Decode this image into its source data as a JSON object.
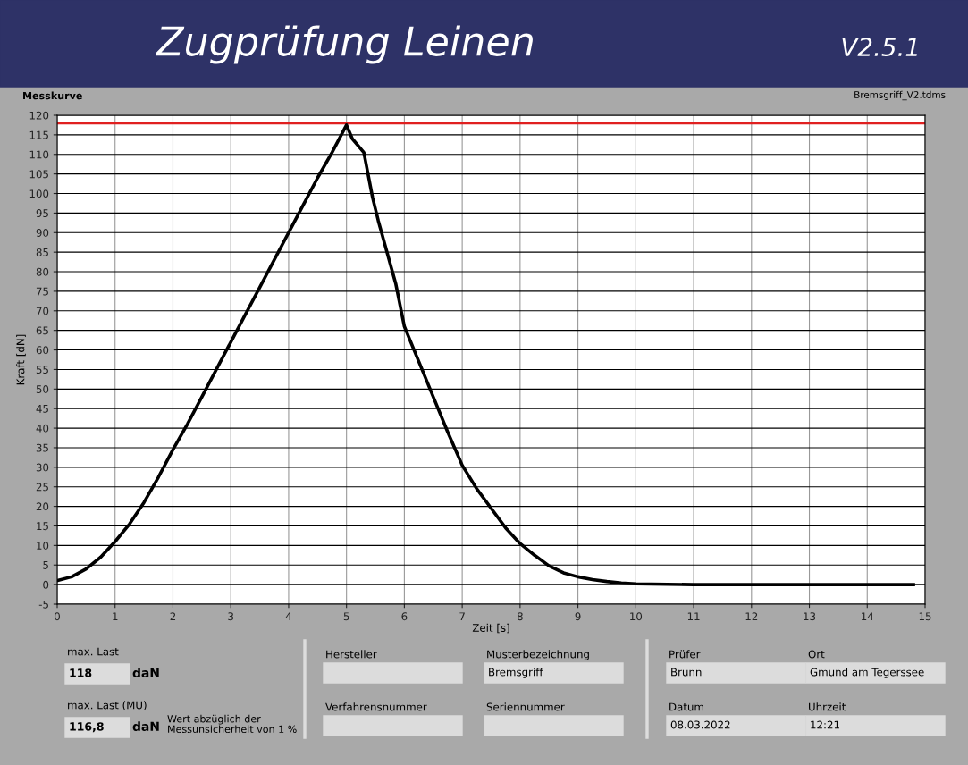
{
  "chart_data": {
    "type": "line",
    "title": "Zugprüfung Leinen",
    "subtitle": "Messkurve",
    "xlabel": "Zeit [s]",
    "ylabel": "Kraft [dN]",
    "x": [
      0,
      0.25,
      0.5,
      0.75,
      1,
      1.25,
      1.5,
      1.75,
      2,
      2.25,
      2.5,
      2.75,
      3,
      3.25,
      3.5,
      3.75,
      4,
      4.25,
      4.5,
      4.75,
      5,
      5.1,
      5.3,
      5.45,
      5.55,
      5.7,
      5.85,
      6,
      6.25,
      6.5,
      6.75,
      7,
      7.25,
      7.5,
      7.75,
      8,
      8.25,
      8.5,
      8.75,
      9,
      9.25,
      9.5,
      9.75,
      10,
      11,
      12,
      13,
      14,
      14.8
    ],
    "series": [
      {
        "color": "#000000",
        "values": [
          1,
          2,
          4,
          7,
          11,
          15.5,
          21,
          27.5,
          34.5,
          41,
          48,
          55,
          62,
          69,
          76,
          83,
          90,
          97,
          104,
          110.5,
          117.5,
          114,
          110.5,
          99,
          93,
          85,
          77,
          66,
          57,
          48,
          39,
          30.5,
          24.5,
          19.5,
          14.5,
          10.5,
          7.5,
          4.8,
          3,
          2,
          1.3,
          0.8,
          0.4,
          0.2,
          0,
          0,
          0,
          0,
          0
        ]
      }
    ],
    "xlim": [
      0,
      15
    ],
    "xticks": [
      0,
      1,
      2,
      3,
      4,
      5,
      6,
      7,
      8,
      9,
      10,
      11,
      12,
      13,
      14,
      15
    ],
    "ylim": [
      -5,
      120
    ],
    "yticks": [
      -5,
      0,
      5,
      10,
      15,
      20,
      25,
      30,
      35,
      40,
      45,
      50,
      55,
      60,
      65,
      70,
      75,
      80,
      85,
      90,
      95,
      100,
      105,
      110,
      115,
      120
    ],
    "grid": true,
    "marker": "none",
    "line_style": "solid",
    "ref_lines": [
      {
        "axis": "y",
        "value": 118,
        "color": "#e02020"
      }
    ],
    "annotations": [
      "max. Last",
      "118",
      "daN",
      "max. Last (MU)",
      "116,8",
      "daN",
      "Wert abzüglich der\nMessunsicherheit von 1 %",
      "Hersteller",
      "Musterbezeichnung",
      "Bremsgriff",
      "Verfahrensnummer",
      "Seriennummer",
      "Prüfer",
      "Brunn",
      "Ort",
      "Gmund am Tegerssee",
      "Datum",
      "08.03.2022",
      "Uhrzeit",
      "12:21",
      "Bremsgriff_V2.tdms",
      "V2.5.1"
    ]
  }
}
